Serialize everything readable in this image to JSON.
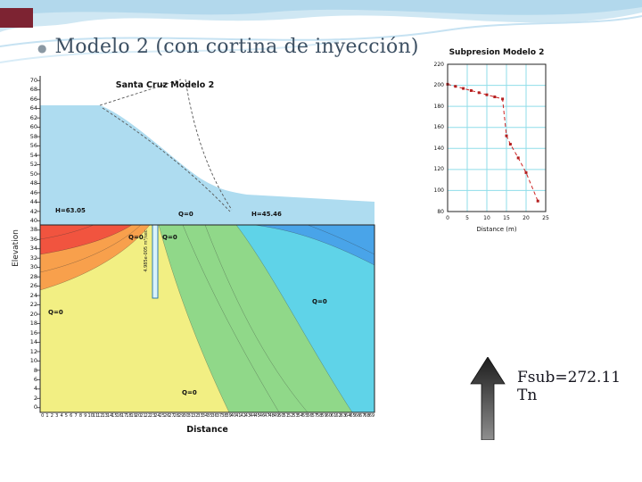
{
  "slide": {
    "title": "Modelo 2 (con cortina de inyección)",
    "bullet": "●",
    "fsub_label": "Fsub=272.11 Tn"
  },
  "colors": {
    "title_text": "#3d5063",
    "corner_accent": "#7d2332",
    "wave_blue": "#bcdcee",
    "water_blue": "#aedcf0",
    "series_red": "#cc2222",
    "grid_cyan": "#8fdde9"
  },
  "main_chart": {
    "title": "Santa Cruz Modelo 2",
    "y_axis_label": "Elevation",
    "x_axis_label": "Distance",
    "y_ticks": [
      70,
      68,
      66,
      64,
      62,
      60,
      58,
      56,
      54,
      52,
      50,
      48,
      46,
      44,
      42,
      40,
      38,
      36,
      34,
      32,
      30,
      28,
      26,
      24,
      22,
      20,
      18,
      16,
      14,
      12,
      10,
      8,
      6,
      4,
      2,
      0
    ],
    "x_ticks": [
      0,
      1,
      2,
      3,
      4,
      5,
      6,
      7,
      8,
      9,
      10,
      11,
      12,
      13,
      14,
      15,
      16,
      17,
      18,
      19,
      20,
      21,
      22,
      23,
      24,
      25,
      26,
      27,
      28,
      29,
      30,
      31,
      32,
      33,
      34,
      35,
      36,
      37,
      38,
      39,
      40,
      41,
      42,
      43,
      44,
      45,
      46,
      47,
      48,
      49,
      50,
      51,
      52,
      53,
      54,
      55,
      56,
      57,
      58,
      59,
      60,
      61,
      62,
      63,
      64,
      65,
      66,
      67,
      68,
      69
    ],
    "annotations": {
      "h_left": "H=63.05",
      "q_toe": "Q=0",
      "h_right": "H=45.46",
      "q_curtain_left": "Q=0",
      "q_curtain_right": "Q=0",
      "q_right": "Q=0",
      "q_left": "Q=0",
      "q_bottom": "Q=0"
    },
    "flux_label": "4.985e-005 m³/sec"
  },
  "inset_chart": {
    "title": "Subpresion Modelo 2",
    "xlabel": "Distance (m)",
    "y_ticks": [
      220,
      200,
      180,
      160,
      140,
      120,
      100,
      80
    ],
    "x_ticks": [
      0,
      5,
      10,
      15,
      20,
      25
    ]
  },
  "chart_data": [
    {
      "type": "area",
      "title": "Santa Cruz Modelo 2",
      "xlabel": "Distance",
      "ylabel": "Elevation",
      "xlim": [
        0,
        69
      ],
      "ylim": [
        0,
        70
      ],
      "description": "Seepage (SEEP/W style) contour plot of dam cross-section with grout/injection curtain; total-head color bands sweep from upstream red/orange/yellow to downstream green/cyan/blue; dashed dam outline and phreatic line above foundation",
      "boundary_conditions": [
        {
          "label": "H=63.05",
          "side": "upstream"
        },
        {
          "label": "H=45.46",
          "side": "downstream"
        },
        {
          "label": "Q=0",
          "count": 6
        }
      ],
      "bands": [
        "#f1543f",
        "#f8a04c",
        "#f2ef83",
        "#90d889",
        "#5fd3e8",
        "#49a4e9"
      ],
      "legend_position": "none",
      "grid": false
    },
    {
      "type": "scatter",
      "title": "Subpresion Modelo 2",
      "xlabel": "Distance (m)",
      "ylabel": "",
      "xlim": [
        0,
        25
      ],
      "ylim": [
        80,
        220
      ],
      "x": [
        0,
        2,
        4,
        6,
        8,
        10,
        12,
        14,
        15,
        16,
        18,
        20,
        23
      ],
      "y": [
        201,
        199,
        197,
        195,
        193,
        191,
        189,
        187,
        152,
        144,
        131,
        117,
        90
      ],
      "marker": "square",
      "line_style": "dashed",
      "color": "#cc2222",
      "grid": true,
      "grid_color": "#8fdde9",
      "legend_position": "none"
    }
  ]
}
